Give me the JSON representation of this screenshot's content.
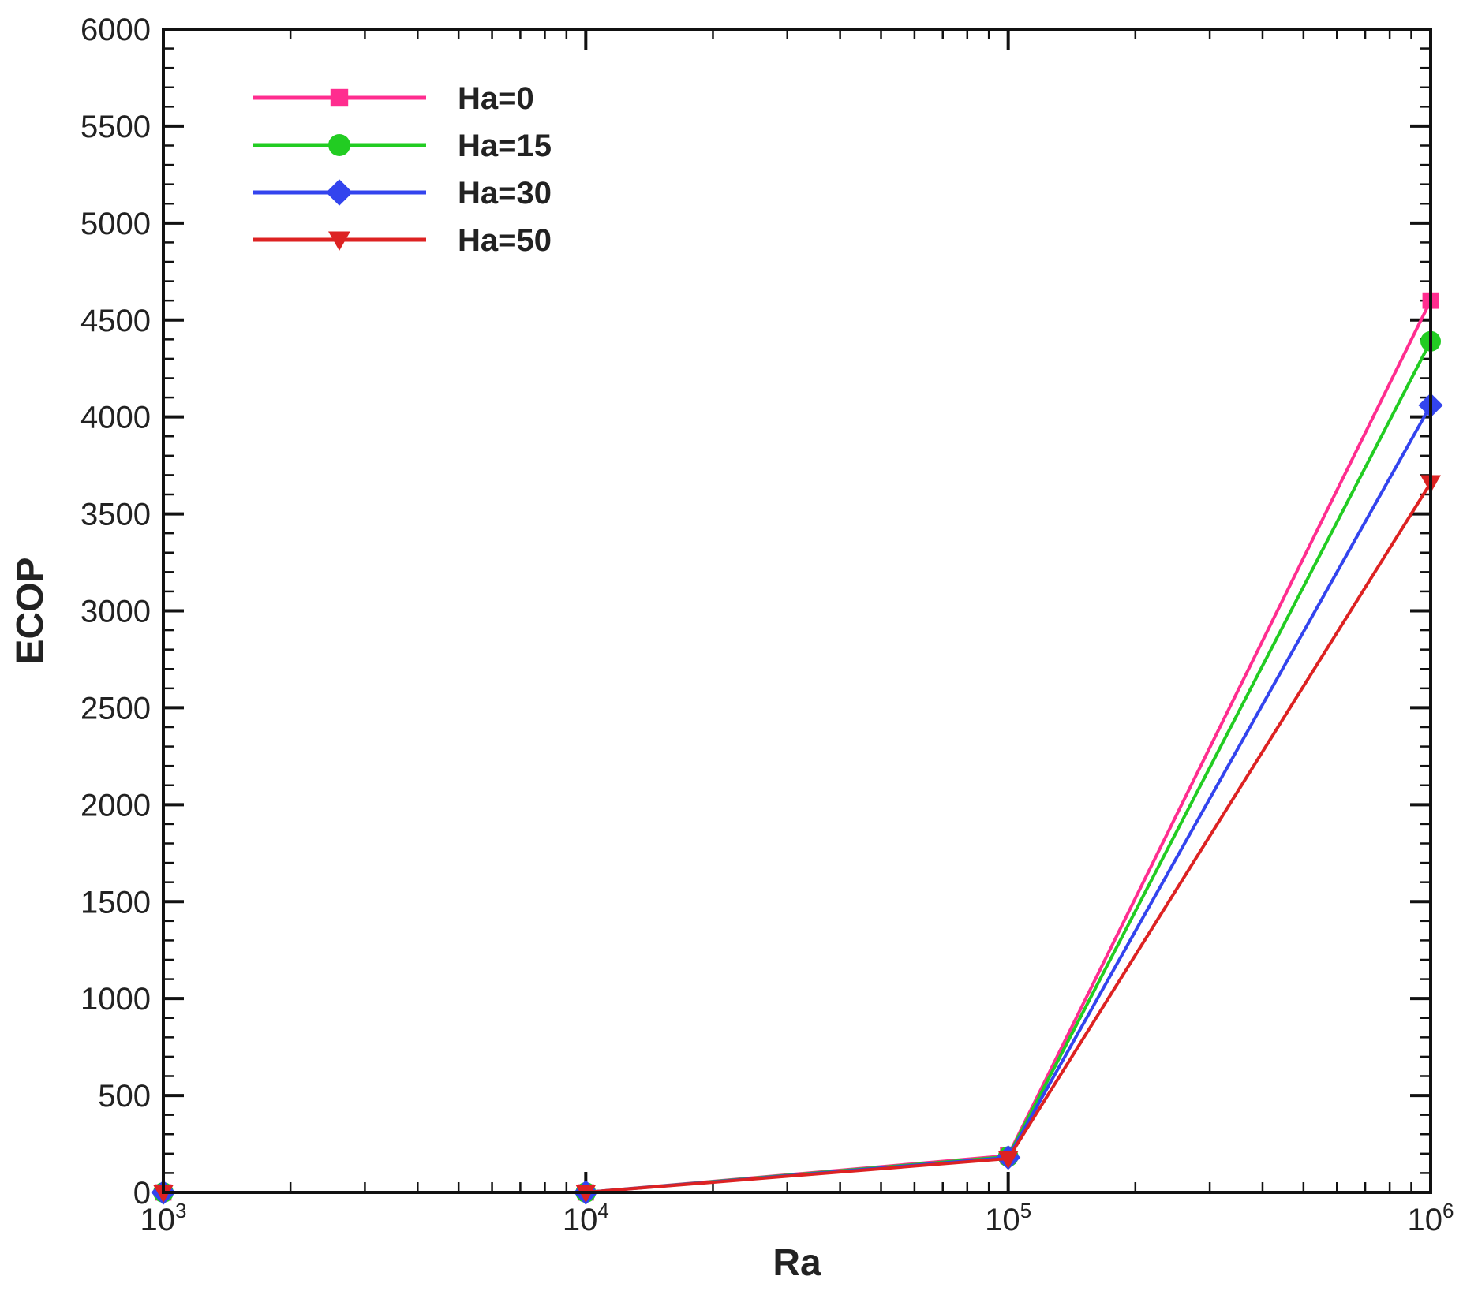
{
  "chart_data": {
    "type": "line",
    "xlabel": "Ra",
    "ylabel": "ECOP",
    "xscale": "log",
    "xlim": [
      1000,
      1000000
    ],
    "ylim": [
      0,
      6000
    ],
    "x": [
      1000,
      10000,
      100000,
      1000000
    ],
    "x_tick_labels": [
      {
        "base": "10",
        "exp": "3"
      },
      {
        "base": "10",
        "exp": "4"
      },
      {
        "base": "10",
        "exp": "5"
      },
      {
        "base": "10",
        "exp": "6"
      }
    ],
    "y_ticks": [
      0,
      500,
      1000,
      1500,
      2000,
      2500,
      3000,
      3500,
      4000,
      4500,
      5000,
      5500,
      6000
    ],
    "grid": false,
    "legend_position": "top-left",
    "series": [
      {
        "name": "Ha=0",
        "color": "#ff2d8f",
        "marker": "square",
        "values": [
          0,
          0,
          190,
          4600
        ]
      },
      {
        "name": "Ha=15",
        "color": "#22cc22",
        "marker": "circle",
        "values": [
          0,
          0,
          185,
          4390
        ]
      },
      {
        "name": "Ha=30",
        "color": "#3344ee",
        "marker": "diamond",
        "values": [
          0,
          0,
          180,
          4060
        ]
      },
      {
        "name": "Ha=50",
        "color": "#dd2222",
        "marker": "triangle-down",
        "values": [
          0,
          0,
          175,
          3660
        ]
      }
    ]
  }
}
